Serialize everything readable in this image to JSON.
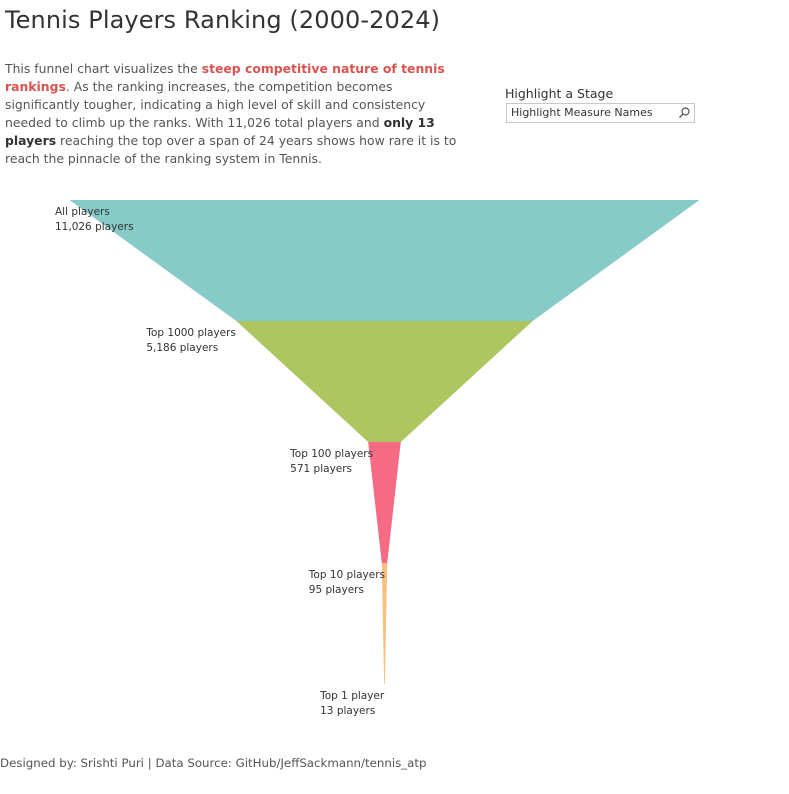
{
  "title": "Tennis Players Ranking (2000-2024)",
  "description": {
    "part1": "This funnel chart visualizes the ",
    "highlight1": "steep competitive nature of tennis rankings",
    "part2": ". As the ranking increases, the competition becomes significantly tougher, indicating a high level of skill and consistency needed to climb up the ranks. With 11,026 total players and ",
    "highlight2": "only 13 players",
    "part3": " reaching the top over a span of 24 years shows how rare it is to reach the pinnacle of the ranking system in Tennis."
  },
  "filter": {
    "label": "Highlight a Stage",
    "placeholder": "Highlight Measure Names",
    "icon": "search-icon"
  },
  "chart_data": {
    "type": "funnel",
    "title": "Tennis Players Ranking (2000-2024)",
    "stages": [
      {
        "name": "All players",
        "count_label": "11,026 players",
        "value": 11026,
        "color": "#86cbc8"
      },
      {
        "name": "Top 1000 players",
        "count_label": "5,186 players",
        "value": 5186,
        "color": "#adc660"
      },
      {
        "name": "Top 100 players",
        "count_label": "571 players",
        "value": 571,
        "color": "#f56b84"
      },
      {
        "name": "Top 10 players",
        "count_label": "95 players",
        "value": 95,
        "color": "#f7c07e"
      },
      {
        "name": "Top 1 player",
        "count_label": "13 players",
        "value": 13,
        "color": "#f7c07e"
      }
    ]
  },
  "footer": "Designed by: Srishti Puri | Data Source: GitHub/JeffSackmann/tennis_atp"
}
